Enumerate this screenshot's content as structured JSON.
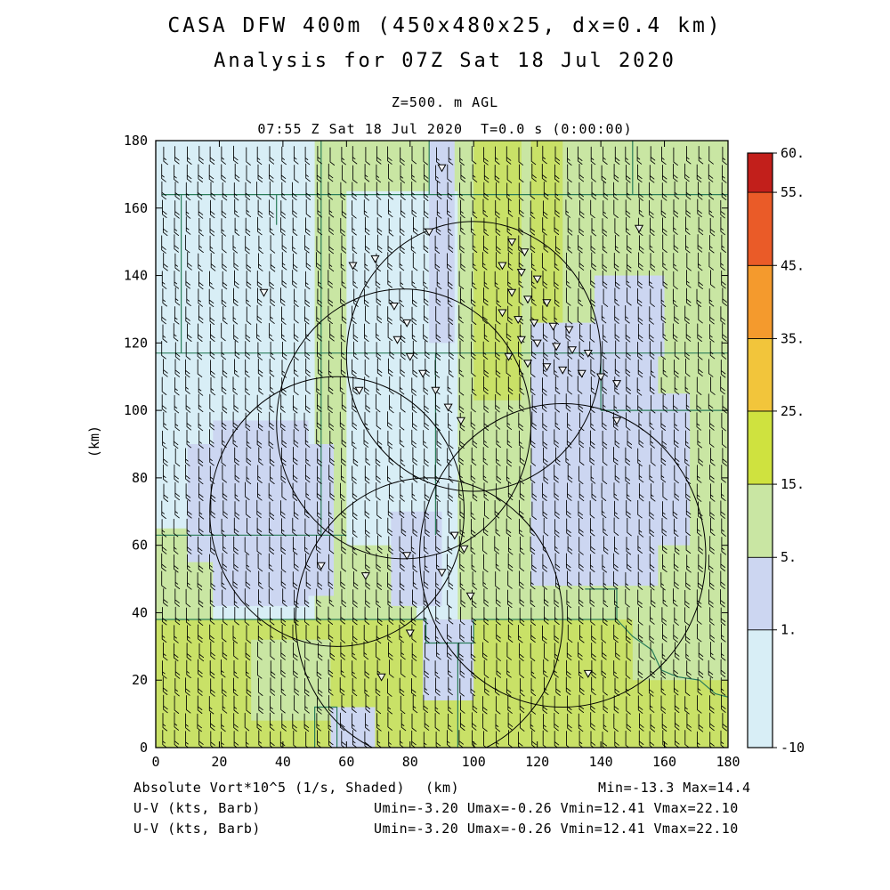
{
  "chart_data": {
    "type": "heatmap",
    "title": "CASA DFW 400m (450x480x25, dx=0.4 km)",
    "subtitle": "Analysis for 07Z Sat 18 Jul 2020",
    "level_label": "Z=500. m AGL",
    "time_label": "07:55 Z Sat 18 Jul 2020  T=0.0 s (0:00:00)",
    "xlabel": "(km)",
    "ylabel": "(km)",
    "xlim": [
      0,
      180
    ],
    "ylim": [
      0,
      180
    ],
    "xticks": [
      0,
      20,
      40,
      60,
      80,
      100,
      120,
      140,
      160,
      180
    ],
    "yticks": [
      0,
      20,
      40,
      60,
      80,
      100,
      120,
      140,
      160,
      180
    ],
    "field": {
      "name": "Absolute Vort*10^5 (1/s, Shaded)",
      "min": -13.3,
      "max": 14.4
    },
    "wind": {
      "name": "U-V (kts, Barb)",
      "umin": -3.2,
      "umax": -0.26,
      "vmin": 12.41,
      "vmax": 22.1
    },
    "colorbar": {
      "levels": [
        -10,
        1,
        5,
        15,
        25,
        35,
        45,
        55,
        60
      ],
      "labels": [
        "-10",
        "1.",
        "5.",
        "15.",
        "25.",
        "35.",
        "45.",
        "55.",
        "60."
      ],
      "positions": [
        0,
        0.198,
        0.32,
        0.443,
        0.566,
        0.688,
        0.811,
        0.934,
        1.0
      ],
      "colors": [
        "#d8eef6",
        "#ccd6f1",
        "#c9e6a3",
        "#cfe23f",
        "#f2c53b",
        "#f49a2d",
        "#ea5b28",
        "#c21f1b"
      ]
    },
    "palette": {
      "cyan": "#d8eef6",
      "lav": "#ccd6f1",
      "grn": "#c9e6a3",
      "ygr": "#c9e167"
    },
    "base_color": "cyan",
    "shaded_patches": [
      {
        "x": 50,
        "y": 38,
        "w": 10,
        "h": 152,
        "c": "grn"
      },
      {
        "x": 95,
        "y": 38,
        "w": 85,
        "h": 127,
        "c": "grn"
      },
      {
        "x": 55,
        "y": 165,
        "w": 125,
        "h": 25,
        "c": "grn"
      },
      {
        "x": 60,
        "y": 38,
        "w": 22,
        "h": 22,
        "c": "grn"
      },
      {
        "x": 0,
        "y": 38,
        "w": 18,
        "h": 27,
        "c": "grn"
      },
      {
        "x": 100,
        "y": 103,
        "w": 15,
        "h": 87,
        "c": "ygr"
      },
      {
        "x": 118,
        "y": 108,
        "w": 10,
        "h": 77,
        "c": "ygr"
      },
      {
        "x": 0,
        "y": 0,
        "w": 180,
        "h": 38,
        "c": "ygr"
      },
      {
        "x": 150,
        "y": 20,
        "w": 30,
        "h": 18,
        "c": "grn"
      },
      {
        "x": 30,
        "y": 8,
        "w": 25,
        "h": 24,
        "c": "grn"
      },
      {
        "x": 86,
        "y": 120,
        "w": 8,
        "h": 70,
        "c": "lav"
      },
      {
        "x": 18,
        "y": 42,
        "w": 30,
        "h": 55,
        "c": "lav"
      },
      {
        "x": 10,
        "y": 55,
        "w": 12,
        "h": 35,
        "c": "lav"
      },
      {
        "x": 38,
        "y": 45,
        "w": 18,
        "h": 45,
        "c": "lav"
      },
      {
        "x": 74,
        "y": 42,
        "w": 16,
        "h": 28,
        "c": "lav"
      },
      {
        "x": 118,
        "y": 48,
        "w": 40,
        "h": 78,
        "c": "lav"
      },
      {
        "x": 150,
        "y": 60,
        "w": 18,
        "h": 45,
        "c": "lav"
      },
      {
        "x": 138,
        "y": 116,
        "w": 22,
        "h": 24,
        "c": "lav"
      },
      {
        "x": 84,
        "y": 14,
        "w": 16,
        "h": 24,
        "c": "lav"
      },
      {
        "x": 55,
        "y": 0,
        "w": 14,
        "h": 12,
        "c": "lav"
      }
    ],
    "county_lines": [
      [
        [
          2,
          164
        ],
        [
          180,
          164
        ]
      ],
      [
        [
          52,
          164
        ],
        [
          52,
          190
        ]
      ],
      [
        [
          150,
          164
        ],
        [
          150,
          190
        ]
      ],
      [
        [
          86,
          164
        ],
        [
          86,
          190
        ]
      ],
      [
        [
          38,
          155
        ],
        [
          38,
          164
        ]
      ],
      [
        [
          0,
          117
        ],
        [
          180,
          117
        ]
      ],
      [
        [
          52,
          63
        ],
        [
          52,
          164
        ]
      ],
      [
        [
          0,
          63
        ],
        [
          60,
          63
        ]
      ],
      [
        [
          88,
          63
        ],
        [
          88,
          117
        ]
      ],
      [
        [
          8,
          117
        ],
        [
          8,
          164
        ]
      ],
      [
        [
          140,
          100
        ],
        [
          180,
          100
        ]
      ],
      [
        [
          140,
          100
        ],
        [
          140,
          117
        ]
      ],
      [
        [
          0,
          38
        ],
        [
          85,
          38
        ],
        [
          85,
          31
        ],
        [
          100,
          31
        ],
        [
          100,
          38
        ],
        [
          145,
          38
        ]
      ],
      [
        [
          95,
          0
        ],
        [
          95,
          31
        ]
      ],
      [
        [
          135,
          47
        ],
        [
          145,
          47
        ],
        [
          145,
          38
        ]
      ],
      [
        [
          145,
          38
        ],
        [
          150,
          33
        ],
        [
          156,
          29
        ],
        [
          159,
          23
        ],
        [
          164,
          21
        ],
        [
          171,
          20
        ],
        [
          176,
          16
        ],
        [
          180,
          15
        ]
      ],
      [
        [
          50,
          0
        ],
        [
          50,
          12
        ],
        [
          57,
          12
        ],
        [
          57,
          0
        ]
      ]
    ],
    "range_rings": [
      [
        100,
        116,
        40
      ],
      [
        78,
        96,
        40
      ],
      [
        57,
        70,
        40
      ],
      [
        86,
        38,
        42
      ],
      [
        128,
        57,
        45
      ]
    ],
    "storm_markers": [
      [
        90,
        172
      ],
      [
        152,
        154
      ],
      [
        86,
        153
      ],
      [
        69,
        145
      ],
      [
        62,
        143
      ],
      [
        34,
        135
      ],
      [
        112,
        150
      ],
      [
        116,
        147
      ],
      [
        109,
        143
      ],
      [
        115,
        141
      ],
      [
        120,
        139
      ],
      [
        112,
        135
      ],
      [
        117,
        133
      ],
      [
        123,
        132
      ],
      [
        109,
        129
      ],
      [
        114,
        127
      ],
      [
        119,
        126
      ],
      [
        125,
        125
      ],
      [
        130,
        124
      ],
      [
        115,
        121
      ],
      [
        120,
        120
      ],
      [
        126,
        119
      ],
      [
        131,
        118
      ],
      [
        136,
        117
      ],
      [
        111,
        116
      ],
      [
        117,
        114
      ],
      [
        123,
        113
      ],
      [
        128,
        112
      ],
      [
        134,
        111
      ],
      [
        140,
        110
      ],
      [
        145,
        108
      ],
      [
        75,
        131
      ],
      [
        79,
        126
      ],
      [
        76,
        121
      ],
      [
        80,
        116
      ],
      [
        84,
        111
      ],
      [
        88,
        106
      ],
      [
        64,
        106
      ],
      [
        92,
        101
      ],
      [
        96,
        97
      ],
      [
        145,
        97
      ],
      [
        52,
        54
      ],
      [
        66,
        51
      ],
      [
        79,
        57
      ],
      [
        90,
        52
      ],
      [
        94,
        63
      ],
      [
        97,
        59
      ],
      [
        99,
        45
      ],
      [
        80,
        34
      ],
      [
        71,
        21
      ],
      [
        136,
        22
      ]
    ],
    "barb_grid": {
      "x0": 2.2,
      "dx": 3.74,
      "nx": 48,
      "y0": 2.5,
      "dy": 5.25,
      "ny": 34
    }
  },
  "footer": {
    "line1_left": "Absolute Vort*10^5 (1/s, Shaded)",
    "line1_center": "(km)",
    "line1_right": "Min=-13.3 Max=14.4",
    "line2_left": "U-V (kts, Barb)",
    "line2_right": "Umin=-3.20 Umax=-0.26 Vmin=12.41 Vmax=22.10",
    "line3_left": "U-V (kts, Barb)",
    "line3_right": "Umin=-3.20 Umax=-0.26 Vmin=12.41 Vmax=22.10"
  }
}
